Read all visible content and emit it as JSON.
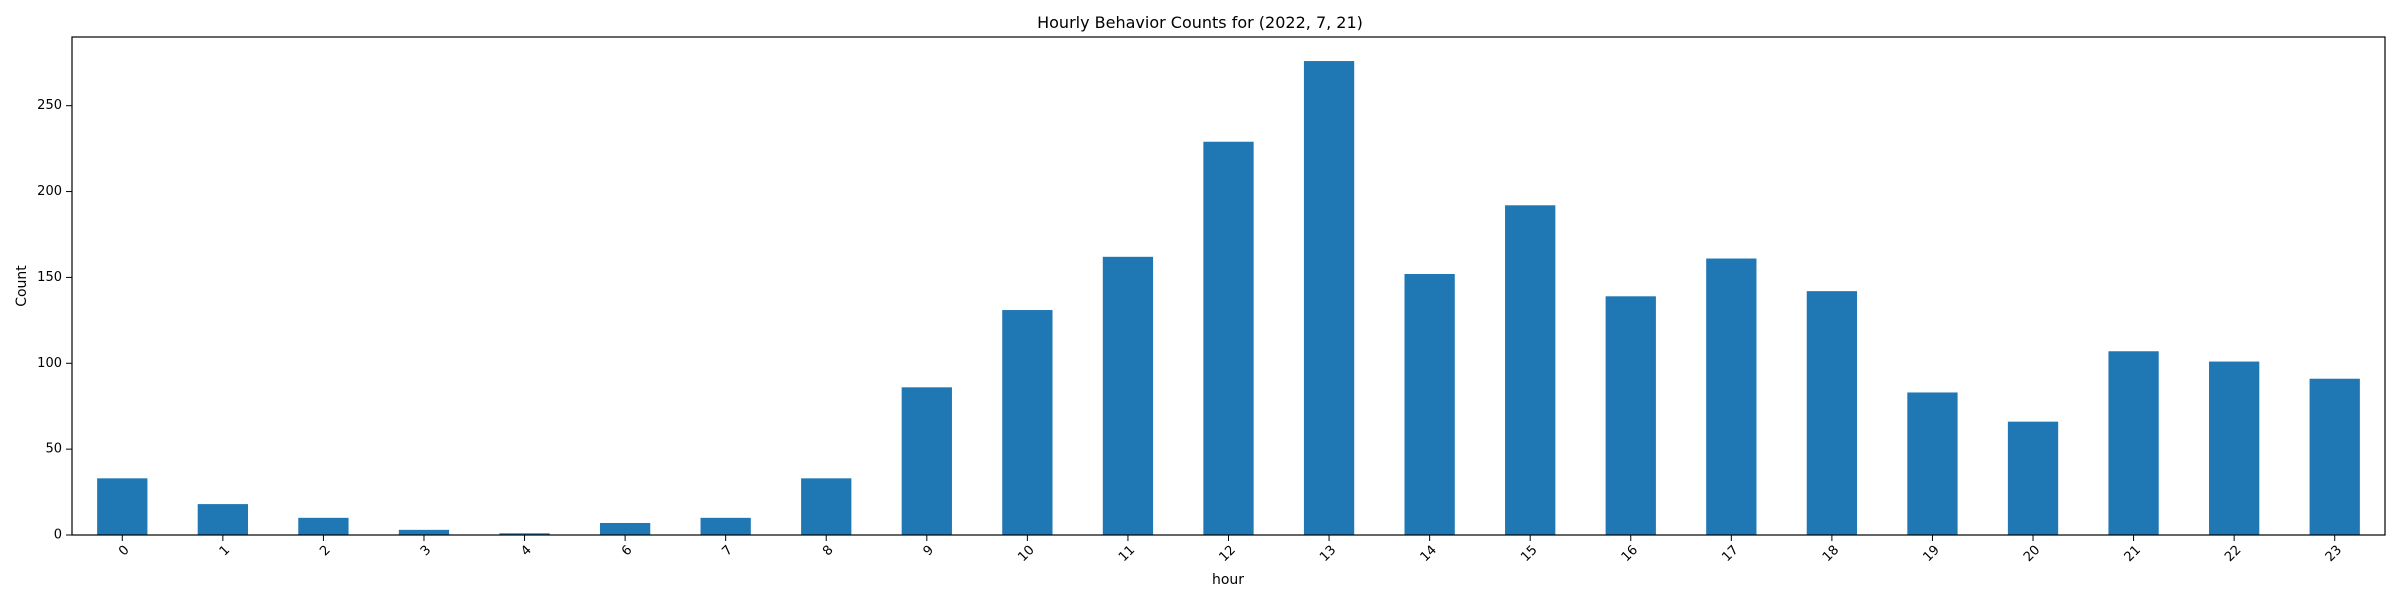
{
  "chart_data": {
    "type": "bar",
    "title": "Hourly Behavior Counts for (2022, 7, 21)",
    "xlabel": "hour",
    "ylabel": "Count",
    "categories": [
      "0",
      "1",
      "2",
      "3",
      "4",
      "6",
      "7",
      "8",
      "9",
      "10",
      "11",
      "12",
      "13",
      "14",
      "15",
      "16",
      "17",
      "18",
      "19",
      "20",
      "21",
      "22",
      "23"
    ],
    "values": [
      33,
      18,
      10,
      3,
      1,
      7,
      10,
      33,
      86,
      131,
      162,
      229,
      276,
      152,
      192,
      139,
      161,
      142,
      83,
      66,
      107,
      101,
      91
    ],
    "ylim": [
      0,
      290
    ],
    "yticks": [
      0,
      50,
      100,
      150,
      200,
      250
    ],
    "bar_color": "#1f77b4",
    "grid": false,
    "legend": "none"
  }
}
